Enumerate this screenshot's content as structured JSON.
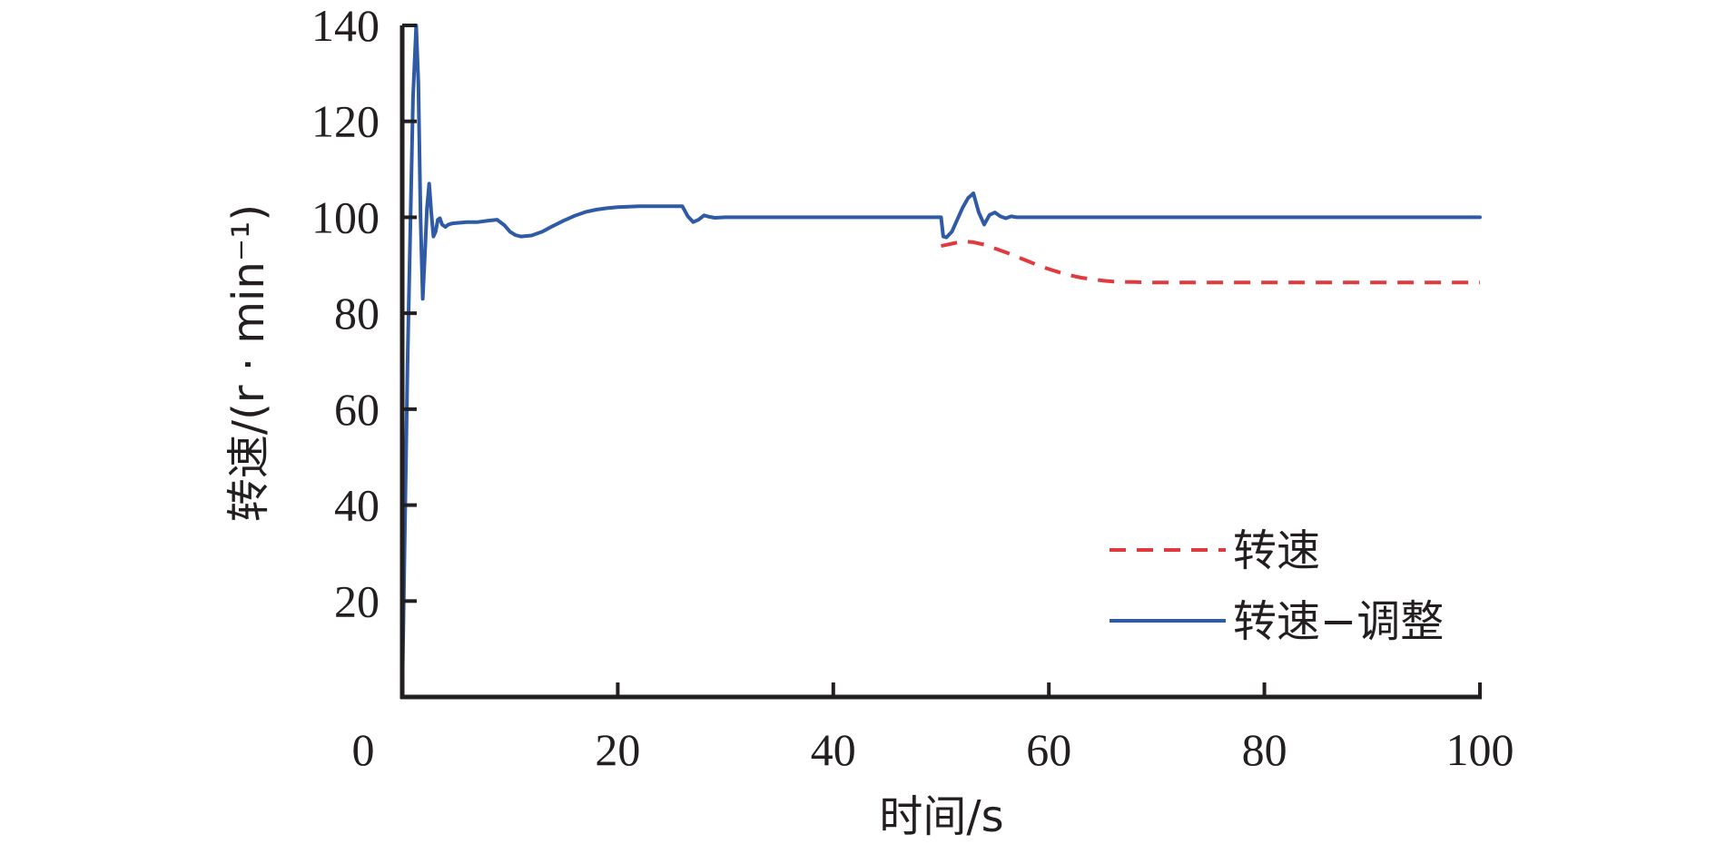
{
  "chart_data": {
    "type": "line",
    "xlabel": "时间/s",
    "ylabel": "转速/(r · min⁻¹)",
    "xlim": [
      0,
      100
    ],
    "ylim": [
      0,
      140
    ],
    "x_ticks": [
      0,
      20,
      40,
      60,
      80,
      100
    ],
    "y_ticks": [
      20,
      40,
      60,
      80,
      100,
      120,
      140
    ],
    "grid": false,
    "legend_position": "bottom-right",
    "series": [
      {
        "name": "转速",
        "color": "#e03a3e",
        "style": "dashed",
        "x": [
          50,
          51,
          52,
          53,
          54,
          55,
          56,
          57,
          58,
          59,
          60,
          61,
          62,
          63,
          64,
          65,
          66,
          68,
          70,
          75,
          80,
          90,
          100
        ],
        "y": [
          94,
          94.5,
          95,
          94.8,
          94.3,
          93.5,
          92.7,
          91.8,
          90.9,
          90.0,
          89.2,
          88.5,
          87.9,
          87.4,
          87.1,
          86.8,
          86.6,
          86.5,
          86.4,
          86.4,
          86.4,
          86.4,
          86.4
        ]
      },
      {
        "name": "转速−调整",
        "color": "#2e5aa6",
        "style": "solid",
        "x": [
          0,
          0.5,
          1.0,
          1.3,
          1.5,
          1.7,
          1.9,
          2.1,
          2.3,
          2.5,
          2.7,
          2.9,
          3.1,
          3.3,
          3.5,
          3.7,
          4.0,
          4.3,
          4.6,
          5.0,
          5.5,
          6,
          7,
          8,
          8.8,
          9.5,
          10,
          10.5,
          11,
          12,
          13,
          14,
          15,
          16,
          17,
          18,
          19,
          20,
          22,
          24,
          26,
          26.5,
          27,
          27.5,
          28,
          28.5,
          29,
          30,
          40,
          50,
          50.2,
          50.5,
          51,
          51.5,
          52,
          52.5,
          53,
          53.5,
          54,
          54.5,
          55,
          55.5,
          56,
          56.5,
          57,
          60,
          70,
          80,
          90,
          100
        ],
        "y": [
          0,
          70,
          125,
          140,
          128,
          100,
          83,
          92,
          102,
          107,
          101,
          96,
          97,
          99.5,
          99.8,
          98.5,
          98,
          98.5,
          98.7,
          98.8,
          98.9,
          99,
          99,
          99.3,
          99.5,
          98.3,
          97,
          96.3,
          96,
          96.2,
          97,
          98.2,
          99.3,
          100.3,
          101.1,
          101.6,
          101.9,
          102.1,
          102.3,
          102.3,
          102.3,
          100.2,
          99,
          99.5,
          100.4,
          100.1,
          99.9,
          100,
          100,
          100,
          96,
          95.8,
          97,
          99.5,
          102,
          104,
          105,
          101,
          98.5,
          100.5,
          101,
          100.2,
          99.8,
          100.2,
          100,
          100,
          100,
          100,
          100,
          100
        ]
      }
    ]
  }
}
